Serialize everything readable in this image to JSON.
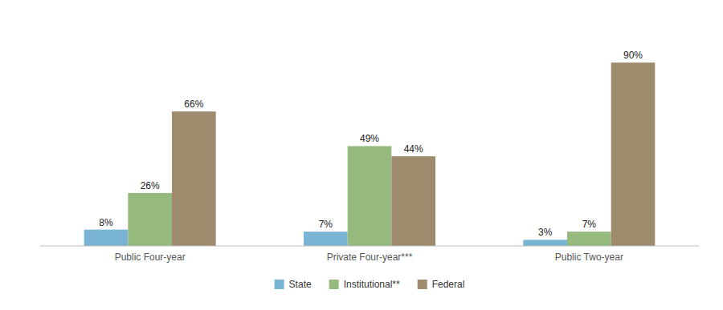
{
  "chart_data": {
    "type": "bar",
    "categories": [
      "Public Four-year",
      "Private Four-year***",
      "Public Two-year"
    ],
    "series": [
      {
        "name": "State",
        "color": "#7ab4d4",
        "values": [
          8,
          7,
          3
        ],
        "value_labels": [
          "8%",
          "7%",
          "3%"
        ]
      },
      {
        "name": "Institutional**",
        "color": "#96ba7e",
        "values": [
          26,
          49,
          7
        ],
        "value_labels": [
          "26%",
          "49%",
          "7%"
        ]
      },
      {
        "name": "Federal",
        "color": "#9e8b6e",
        "values": [
          66,
          44,
          90
        ],
        "value_labels": [
          "66%",
          "44%",
          "90%"
        ]
      }
    ],
    "ylim": [
      0,
      105
    ],
    "grid": false,
    "legend": "bottom",
    "data_labels": true,
    "tick_labels": "x"
  }
}
